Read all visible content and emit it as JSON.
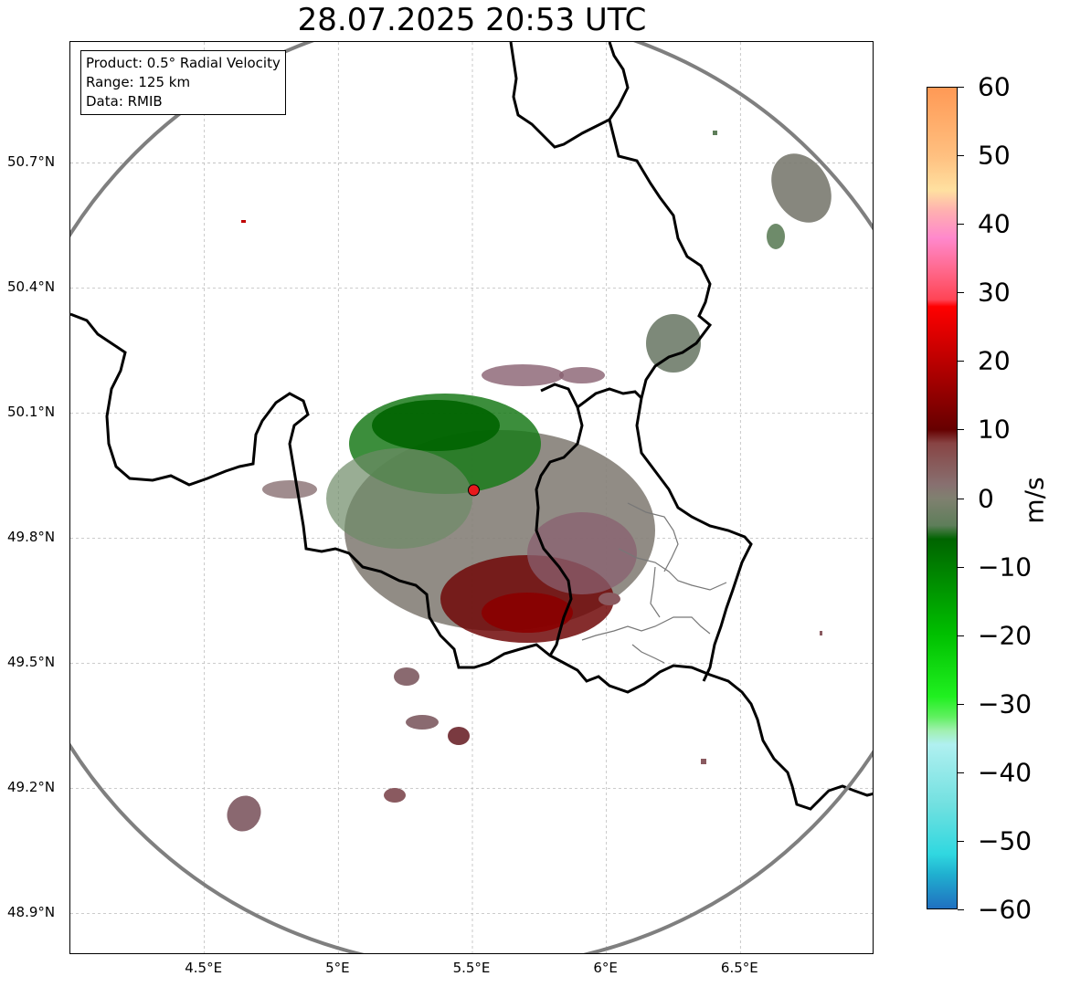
{
  "title": "28.07.2025 20:53 UTC",
  "info": {
    "product": "Product: 0.5° Radial Velocity",
    "range": "Range: 125 km",
    "data": "Data: RMIB"
  },
  "lat_ticks": [
    {
      "value": 50.7,
      "label": "50.7°N"
    },
    {
      "value": 50.4,
      "label": "50.4°N"
    },
    {
      "value": 50.1,
      "label": "50.1°N"
    },
    {
      "value": 49.8,
      "label": "49.8°N"
    },
    {
      "value": 49.5,
      "label": "49.5°N"
    },
    {
      "value": 49.2,
      "label": "49.2°N"
    },
    {
      "value": 48.9,
      "label": "48.9°N"
    }
  ],
  "lon_ticks": [
    {
      "value": 4.5,
      "label": "4.5°E"
    },
    {
      "value": 5.0,
      "label": "5°E"
    },
    {
      "value": 5.5,
      "label": "5.5°E"
    },
    {
      "value": 6.0,
      "label": "6°E"
    },
    {
      "value": 6.5,
      "label": "6.5°E"
    }
  ],
  "map_extent": {
    "lon_min": 4.0,
    "lon_max": 7.0,
    "lat_min": 48.8,
    "lat_max": 50.99
  },
  "radar_site": {
    "lon": 5.505,
    "lat": 49.915,
    "color": "#e8191d"
  },
  "colorbar": {
    "label": "m/s",
    "min": -60,
    "max": 60,
    "ticks": [
      "60",
      "50",
      "40",
      "30",
      "20",
      "10",
      "0",
      "−10",
      "−20",
      "−30",
      "−40",
      "−50",
      "−60"
    ],
    "tick_values": [
      60,
      50,
      40,
      30,
      20,
      10,
      0,
      -10,
      -20,
      -30,
      -40,
      -50,
      -60
    ],
    "stops": [
      {
        "v": 60,
        "c": "#ff9955"
      },
      {
        "v": 50,
        "c": "#ffc080"
      },
      {
        "v": 45,
        "c": "#ffe0a0"
      },
      {
        "v": 42,
        "c": "#ffb0b0"
      },
      {
        "v": 38,
        "c": "#ff88cc"
      },
      {
        "v": 33,
        "c": "#ff6688"
      },
      {
        "v": 29,
        "c": "#ff4455"
      },
      {
        "v": 28,
        "c": "#ff0000"
      },
      {
        "v": 20,
        "c": "#bb0000"
      },
      {
        "v": 10,
        "c": "#660000"
      },
      {
        "v": 8,
        "c": "#884444"
      },
      {
        "v": 2,
        "c": "#887070"
      },
      {
        "v": 0,
        "c": "#808070"
      },
      {
        "v": -4,
        "c": "#5e7e5a"
      },
      {
        "v": -6,
        "c": "#006400"
      },
      {
        "v": -20,
        "c": "#00c000"
      },
      {
        "v": -29,
        "c": "#20f020"
      },
      {
        "v": -32,
        "c": "#60f060"
      },
      {
        "v": -34,
        "c": "#a0f0b0"
      },
      {
        "v": -36,
        "c": "#b0f0f0"
      },
      {
        "v": -45,
        "c": "#70e0e0"
      },
      {
        "v": -52,
        "c": "#30d8e0"
      },
      {
        "v": -55,
        "c": "#20b0d0"
      },
      {
        "v": -60,
        "c": "#2070c0"
      }
    ]
  }
}
